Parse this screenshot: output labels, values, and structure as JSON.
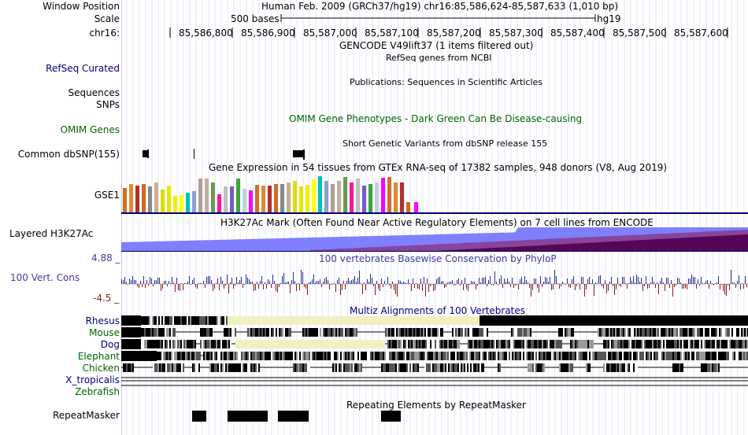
{
  "header": {
    "window_position_label": "Window Position",
    "window_position_value": "Human Feb. 2009 (GRCh37/hg19)   chr16:85,586,624-85,587,633 (1,010 bp)",
    "scale_label": "Scale",
    "scale_value": "500 bases",
    "scale_db": "hg19",
    "chrom_label": "chr16:",
    "ruler_ticks": [
      "85,586,800",
      "85,586,900",
      "85,587,000",
      "85,587,100",
      "85,587,200",
      "85,587,300",
      "85,587,400",
      "85,587,500",
      "85,587,600"
    ]
  },
  "tracks": {
    "gencode_title": "GENCODE V49lift37 (1 items filtered out)",
    "refseq_label": "RefSeq Curated",
    "refseq_title": "RefSeq genes from NCBI",
    "publications_title": "Publications: Sequences in Scientific Articles",
    "sequences_label": "Sequences",
    "snps_label": "SNPs",
    "omim_label": "OMIM Genes",
    "omim_title": "OMIM Gene Phenotypes - Dark Green Can Be Disease-causing",
    "dbsnp_label": "Common dbSNP(155)",
    "dbsnp_title": "Short Genetic Variants from dbSNP release 155",
    "gtex_title": "Gene Expression in 54 tissues from GTEx RNA-seq of 17382 samples, 948 donors (V8, Aug 2019)",
    "gtex_label": "GSE1",
    "h3k27_label": "Layered H3K27Ac",
    "h3k27_title": "H3K27Ac Mark (Often Found Near Active Regulatory Elements) on 7 cell lines from ENCODE",
    "cons_max": "4.88 _",
    "cons_label": "100 Vert. Cons",
    "cons_min": "-4.5 _",
    "cons_title": "100 vertebrates Basewise Conservation by PhyloP",
    "multiz_title": "Multiz Alignments of 100 Vertebrates",
    "species": [
      "Rhesus",
      "Mouse",
      "Dog",
      "Elephant",
      "Chicken",
      "X_tropicalis",
      "Zebrafish"
    ],
    "repeat_title": "Repeating Elements by RepeatMasker",
    "repeat_label": "RepeatMasker"
  },
  "colors": {
    "navy": "#000080",
    "green": "#006400",
    "gtex_bars": [
      "#d0702a",
      "#e08a30",
      "#b03030",
      "#d2691e",
      "#888888",
      "#c8b090",
      "#dcdc00",
      "#e6e600",
      "#f0f000",
      "#ffff00",
      "#00c0c0",
      "#8aa0d0",
      "#b0a090",
      "#c0b0a0",
      "#6a9a50",
      "#ff1493",
      "#c0c0c0",
      "#7060c0",
      "#40a040",
      "#c0d0e0",
      "#ff00ff"
    ],
    "h3k27_bright": "#7f7fff",
    "h3k27_dark": "#500050",
    "cons_pos": "#2c2c8c",
    "cons_neg": "#8b1a1a",
    "multiz_gap": "#f0f0c0"
  }
}
